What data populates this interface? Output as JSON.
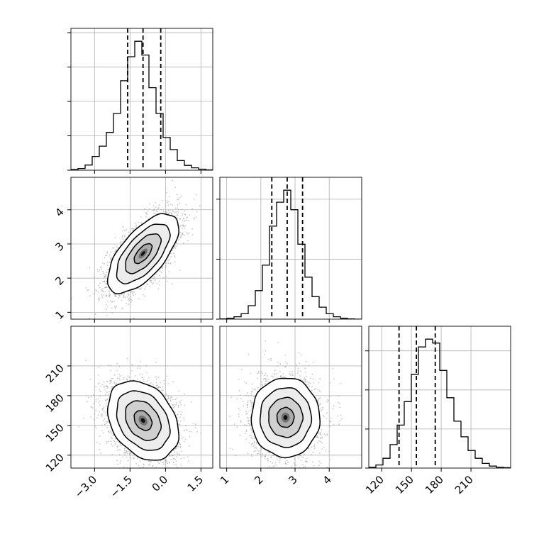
{
  "chart_data": {
    "type": "corner",
    "parameters": [
      {
        "index": 0,
        "range": [
          -4.0,
          2.0
        ],
        "ticks": [
          -3.0,
          -1.5,
          0.0,
          1.5
        ],
        "tick_labels": [
          "−3.0",
          "−1.5",
          "0.0",
          "1.5"
        ],
        "quantiles": [
          -1.6,
          -0.95,
          -0.2
        ]
      },
      {
        "index": 1,
        "range": [
          0.8,
          4.95
        ],
        "ticks": [
          1,
          2,
          3,
          4
        ],
        "tick_labels": [
          "1",
          "2",
          "3",
          "4"
        ],
        "quantiles": [
          2.32,
          2.77,
          3.22
        ]
      },
      {
        "index": 2,
        "range": [
          107,
          250
        ],
        "ticks": [
          120,
          150,
          180,
          210
        ],
        "tick_labels": [
          "120",
          "150",
          "180",
          "210"
        ],
        "quantiles": [
          137.5,
          155.0,
          174.0
        ]
      }
    ],
    "histograms": [
      {
        "param": 0,
        "bins": 20,
        "counts": [
          2,
          5,
          15,
          40,
          70,
          110,
          165,
          260,
          330,
          375,
          335,
          240,
          165,
          95,
          60,
          28,
          14,
          7,
          3,
          1
        ]
      },
      {
        "param": 1,
        "bins": 20,
        "counts": [
          1,
          3,
          8,
          18,
          45,
          95,
          180,
          310,
          390,
          430,
          365,
          250,
          140,
          75,
          40,
          18,
          8,
          3,
          1,
          0
        ]
      },
      {
        "param": 2,
        "bins": 20,
        "counts": [
          2,
          8,
          25,
          60,
          110,
          170,
          240,
          310,
          330,
          320,
          250,
          180,
          120,
          80,
          45,
          25,
          12,
          5,
          2,
          1
        ]
      }
    ],
    "correlations": [
      {
        "pair": [
          0,
          1
        ],
        "center": [
          -0.95,
          2.72
        ],
        "sd": [
          0.75,
          0.58
        ],
        "rho": 0.65
      },
      {
        "pair": [
          0,
          2
        ],
        "center": [
          -0.95,
          155
        ],
        "sd": [
          0.75,
          20
        ],
        "rho": -0.3
      },
      {
        "pair": [
          1,
          2
        ],
        "center": [
          2.72,
          158
        ],
        "sd": [
          0.5,
          20
        ],
        "rho": 0.0
      }
    ],
    "contour_levels": [
      0.5,
      1.0,
      1.5,
      2.0
    ],
    "grid": true,
    "colors": {
      "hist_line": "#000000",
      "quantile_line": "#000000",
      "points": "#9a9a9a",
      "contour_line": "#000000",
      "density": "#000000"
    }
  }
}
